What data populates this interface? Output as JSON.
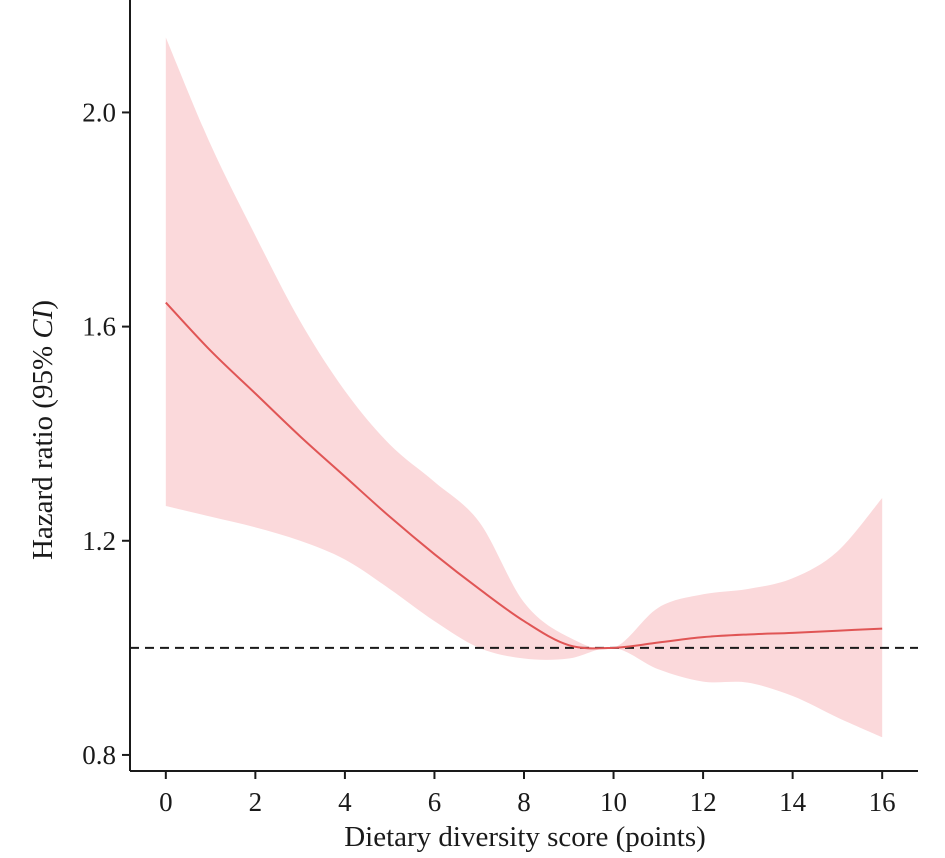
{
  "chart_data": {
    "type": "line",
    "title": "",
    "xlabel": "Dietary diversity score (points)",
    "ylabel": {
      "prefix": "Hazard ratio (95% ",
      "italic": "CI",
      "suffix": ")"
    },
    "xlim": [
      -0.8,
      16.8
    ],
    "ylim": [
      0.77,
      2.21
    ],
    "x_ticks": [
      0,
      2,
      4,
      6,
      8,
      10,
      12,
      14,
      16
    ],
    "x_tick_labels": [
      "0",
      "2",
      "4",
      "6",
      "8",
      "10",
      "12",
      "14",
      "16"
    ],
    "y_ticks": [
      0.8,
      1.2,
      1.6,
      2.0
    ],
    "y_tick_labels": [
      "0.8",
      "1.2",
      "1.6",
      "2.0"
    ],
    "reference_line": {
      "y": 1.0,
      "style": "dashed",
      "color": "#1a1a1a"
    },
    "grid": false,
    "line_color": "#e05555",
    "band_color": "#fbd9db",
    "series": [
      {
        "x": [
          0,
          1,
          2,
          3,
          4,
          5,
          6,
          7,
          8,
          9,
          10,
          11,
          12,
          13,
          14,
          15,
          16
        ],
        "hr": [
          1.645,
          1.555,
          1.475,
          1.395,
          1.32,
          1.245,
          1.175,
          1.11,
          1.05,
          1.005,
          1.0,
          1.01,
          1.02,
          1.025,
          1.028,
          1.032,
          1.036
        ],
        "lower": [
          1.265,
          1.245,
          1.225,
          1.2,
          1.165,
          1.11,
          1.05,
          1.0,
          0.98,
          0.98,
          1.0,
          0.96,
          0.937,
          0.935,
          0.91,
          0.87,
          0.833
        ],
        "upper": [
          2.14,
          1.94,
          1.77,
          1.61,
          1.48,
          1.38,
          1.31,
          1.235,
          1.085,
          1.02,
          1.0,
          1.075,
          1.1,
          1.11,
          1.13,
          1.18,
          1.28
        ]
      }
    ]
  }
}
